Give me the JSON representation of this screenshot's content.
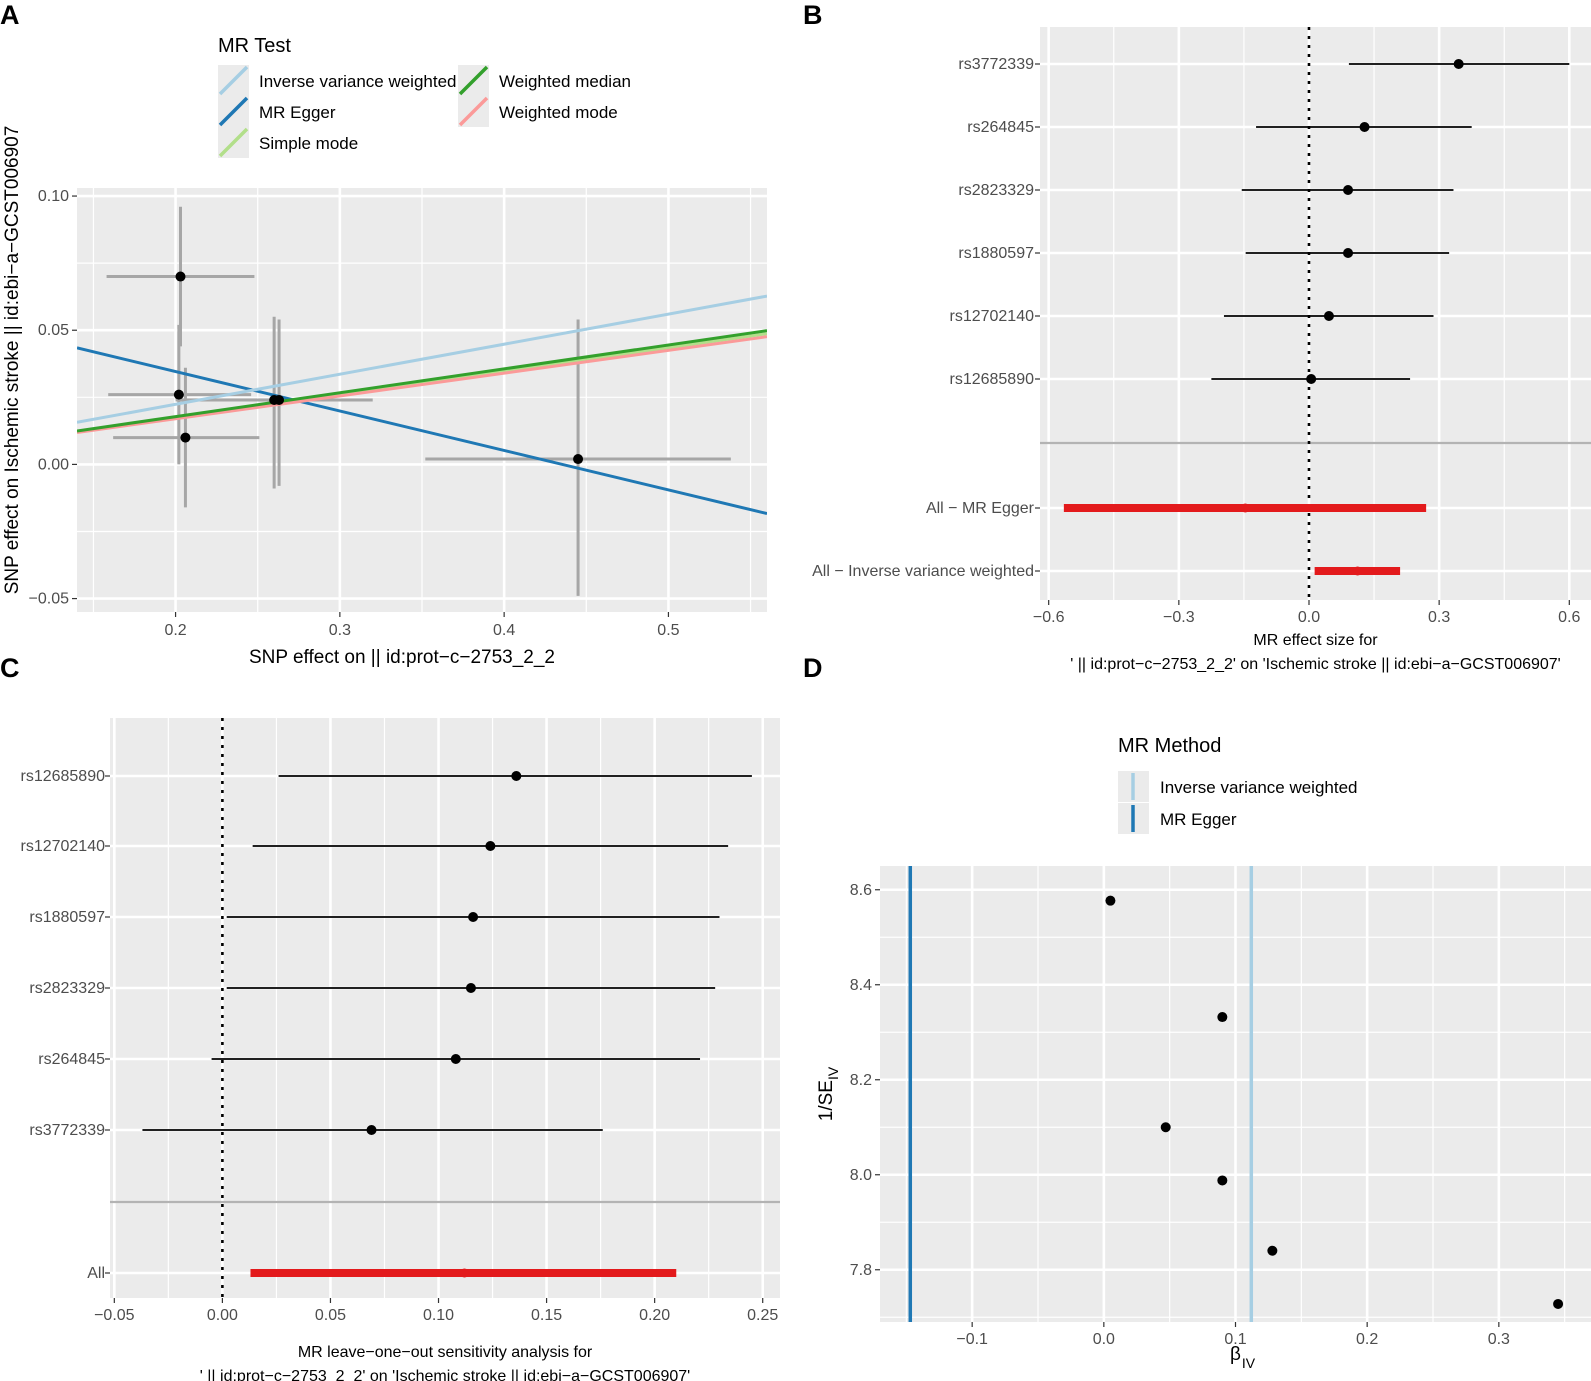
{
  "colors": {
    "panel_bg": "#ebebeb",
    "grid": "#ffffff",
    "point": "#000000",
    "errbar_scatter": "#a6a6a6",
    "summary_red": "#e31a1c",
    "ivw": "#a6cee3",
    "egger": "#1f78b4",
    "simple_mode": "#b2df8a",
    "weighted_median": "#33a02c",
    "weighted_mode": "#fb9a99"
  },
  "chart_data": [
    {
      "panel": "A",
      "type": "scatter",
      "xlabel": "SNP effect on  || id:prot−c−2753_2_2",
      "ylabel": "SNP effect on Ischemic stroke || id:ebi−a−GCST006907",
      "xlim": [
        0.14,
        0.56
      ],
      "ylim": [
        -0.055,
        0.103
      ],
      "x_ticks": [
        0.2,
        0.3,
        0.4,
        0.5
      ],
      "x_tick_labels": [
        "0.2",
        "0.3",
        "0.4",
        "0.5"
      ],
      "y_ticks": [
        0.1,
        0.05,
        0.0,
        -0.05
      ],
      "y_tick_labels": [
        "0.10",
        "0.05",
        "0.00",
        "−0.05"
      ],
      "legend_title": "MR Test",
      "legend": [
        {
          "label": "Inverse variance weighted",
          "color": "#a6cee3"
        },
        {
          "label": "MR Egger",
          "color": "#1f78b4"
        },
        {
          "label": "Simple mode",
          "color": "#b2df8a"
        },
        {
          "label": "Weighted median",
          "color": "#33a02c"
        },
        {
          "label": "Weighted mode",
          "color": "#fb9a99"
        }
      ],
      "points": [
        {
          "x": 0.203,
          "y": 0.07,
          "x_lo": 0.158,
          "x_hi": 0.248,
          "y_lo": 0.044,
          "y_hi": 0.096
        },
        {
          "x": 0.202,
          "y": 0.026,
          "x_lo": 0.159,
          "x_hi": 0.246,
          "y_lo": 0.0,
          "y_hi": 0.052
        },
        {
          "x": 0.206,
          "y": 0.01,
          "x_lo": 0.162,
          "x_hi": 0.251,
          "y_lo": -0.016,
          "y_hi": 0.036
        },
        {
          "x": 0.26,
          "y": 0.024,
          "x_lo": 0.2,
          "x_hi": 0.318,
          "y_lo": -0.009,
          "y_hi": 0.055
        },
        {
          "x": 0.263,
          "y": 0.024,
          "x_lo": 0.205,
          "x_hi": 0.32,
          "y_lo": -0.008,
          "y_hi": 0.054
        },
        {
          "x": 0.445,
          "y": 0.002,
          "x_lo": 0.352,
          "x_hi": 0.538,
          "y_lo": -0.049,
          "y_hi": 0.054
        }
      ],
      "lines": [
        {
          "method": "Inverse variance weighted",
          "color": "#a6cee3",
          "slope": 0.112,
          "intercept": 0.0
        },
        {
          "method": "MR Egger",
          "color": "#1f78b4",
          "slope": -0.147,
          "intercept": 0.064
        },
        {
          "method": "Simple mode",
          "color": "#b2df8a",
          "slope": 0.087,
          "intercept": 0.0
        },
        {
          "method": "Weighted median",
          "color": "#33a02c",
          "slope": 0.089,
          "intercept": 0.0
        },
        {
          "method": "Weighted mode",
          "color": "#fb9a99",
          "slope": 0.085,
          "intercept": 0.0
        }
      ]
    },
    {
      "panel": "B",
      "type": "forest",
      "xlabel": "MR effect size for",
      "xlabel2": "' || id:prot−c−2753_2_2' on 'Ischemic stroke || id:ebi−a−GCST006907'",
      "xlim": [
        -0.62,
        0.65
      ],
      "x_ticks": [
        -0.6,
        -0.3,
        0.0,
        0.3,
        0.6
      ],
      "x_tick_labels": [
        "−0.6",
        "−0.3",
        "0.0",
        "0.3",
        "0.6"
      ],
      "rows": [
        {
          "label": "rs3772339",
          "b": 0.345,
          "lo": 0.092,
          "hi": 0.6,
          "summary": false
        },
        {
          "label": "rs264845",
          "b": 0.128,
          "lo": -0.122,
          "hi": 0.375,
          "summary": false
        },
        {
          "label": "rs2823329",
          "b": 0.09,
          "lo": -0.155,
          "hi": 0.333,
          "summary": false
        },
        {
          "label": "rs1880597",
          "b": 0.09,
          "lo": -0.146,
          "hi": 0.323,
          "summary": false
        },
        {
          "label": "rs12702140",
          "b": 0.046,
          "lo": -0.196,
          "hi": 0.287,
          "summary": false
        },
        {
          "label": "rs12685890",
          "b": 0.005,
          "lo": -0.225,
          "hi": 0.233,
          "summary": false
        },
        {
          "label": "All − MR Egger",
          "b": -0.147,
          "lo": -0.565,
          "hi": 0.27,
          "summary": true
        },
        {
          "label": "All − Inverse variance weighted",
          "b": 0.112,
          "lo": 0.013,
          "hi": 0.21,
          "summary": true
        }
      ]
    },
    {
      "panel": "C",
      "type": "forest",
      "xlabel": "MR leave−one−out sensitivity analysis for",
      "xlabel2": "' || id:prot−c−2753_2_2' on 'Ischemic stroke || id:ebi−a−GCST006907'",
      "xlim": [
        -0.052,
        0.258
      ],
      "x_ticks": [
        -0.05,
        0.0,
        0.05,
        0.1,
        0.15,
        0.2,
        0.25
      ],
      "x_tick_labels": [
        "−0.05",
        "0.00",
        "0.05",
        "0.10",
        "0.15",
        "0.20",
        "0.25"
      ],
      "rows": [
        {
          "label": "rs12685890",
          "b": 0.136,
          "lo": 0.026,
          "hi": 0.245,
          "summary": false
        },
        {
          "label": "rs12702140",
          "b": 0.124,
          "lo": 0.014,
          "hi": 0.234,
          "summary": false
        },
        {
          "label": "rs1880597",
          "b": 0.116,
          "lo": 0.002,
          "hi": 0.23,
          "summary": false
        },
        {
          "label": "rs2823329",
          "b": 0.115,
          "lo": 0.002,
          "hi": 0.228,
          "summary": false
        },
        {
          "label": "rs264845",
          "b": 0.108,
          "lo": -0.005,
          "hi": 0.221,
          "summary": false
        },
        {
          "label": "rs3772339",
          "b": 0.069,
          "lo": -0.037,
          "hi": 0.176,
          "summary": false
        },
        {
          "label": "All",
          "b": 0.112,
          "lo": 0.013,
          "hi": 0.21,
          "summary": true
        }
      ]
    },
    {
      "panel": "D",
      "type": "funnel",
      "xlabel": "β",
      "xlabel_sub": "IV",
      "ylabel": "1/SE",
      "ylabel_sub": "IV",
      "xlim": [
        -0.17,
        0.37
      ],
      "ylim": [
        7.69,
        8.65
      ],
      "x_ticks": [
        -0.1,
        0.0,
        0.1,
        0.2,
        0.3
      ],
      "x_tick_labels": [
        "−0.1",
        "0.0",
        "0.1",
        "0.2",
        "0.3"
      ],
      "y_ticks": [
        7.8,
        8.0,
        8.2,
        8.4,
        8.6
      ],
      "y_tick_labels": [
        "7.8",
        "8.0",
        "8.2",
        "8.4",
        "8.6"
      ],
      "legend_title": "MR Method",
      "legend": [
        {
          "label": "Inverse variance weighted",
          "color": "#a6cee3"
        },
        {
          "label": "MR Egger",
          "color": "#1f78b4"
        }
      ],
      "vlines": [
        {
          "method": "Inverse variance weighted",
          "x": 0.112,
          "color": "#a6cee3"
        },
        {
          "method": "MR Egger",
          "x": -0.147,
          "color": "#1f78b4"
        }
      ],
      "points": [
        {
          "x": 0.005,
          "y": 8.577
        },
        {
          "x": 0.09,
          "y": 8.332
        },
        {
          "x": 0.047,
          "y": 8.1
        },
        {
          "x": 0.09,
          "y": 7.988
        },
        {
          "x": 0.128,
          "y": 7.84
        },
        {
          "x": 0.345,
          "y": 7.728
        }
      ]
    }
  ],
  "panels": {
    "a_letter": "A",
    "b_letter": "B",
    "c_letter": "C",
    "d_letter": "D"
  }
}
